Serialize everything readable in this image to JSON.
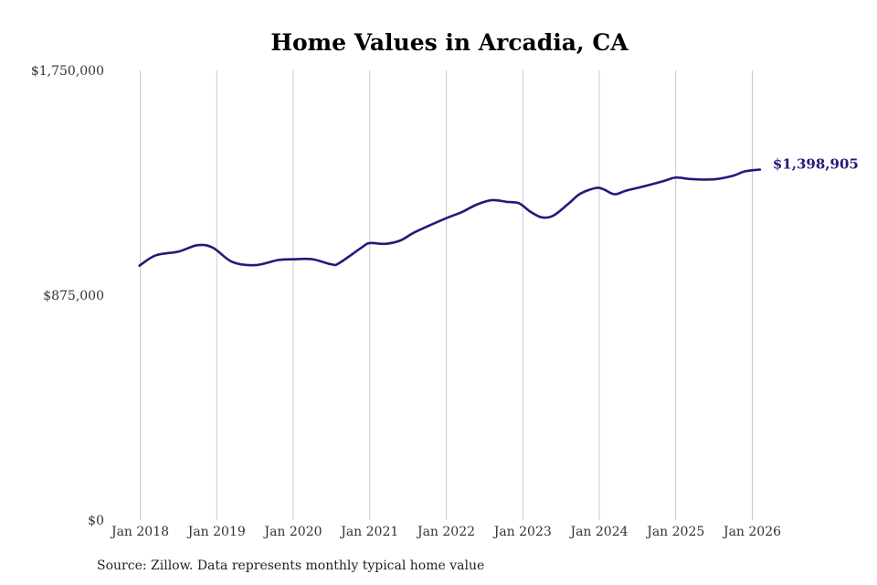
{
  "chart_data": {
    "type": "line",
    "title": "Home Values in Arcadia, CA",
    "xlabel": "",
    "ylabel": "",
    "ylim": [
      0,
      1750000
    ],
    "y_ticks": [
      {
        "value": 0,
        "label": "$0"
      },
      {
        "value": 875000,
        "label": "$875,000"
      },
      {
        "value": 1750000,
        "label": "$1,750,000"
      }
    ],
    "x_ticks": [
      {
        "value": 2018,
        "label": "Jan 2018"
      },
      {
        "value": 2019,
        "label": "Jan 2019"
      },
      {
        "value": 2020,
        "label": "Jan 2020"
      },
      {
        "value": 2021,
        "label": "Jan 2021"
      },
      {
        "value": 2022,
        "label": "Jan 2022"
      },
      {
        "value": 2023,
        "label": "Jan 2023"
      },
      {
        "value": 2024,
        "label": "Jan 2024"
      },
      {
        "value": 2025,
        "label": "Jan 2025"
      },
      {
        "value": 2026,
        "label": "Jan 2026"
      }
    ],
    "xlim": [
      2018,
      2026
    ],
    "grid": {
      "vertical": true,
      "horizontal": false
    },
    "line_color": "#231a7a",
    "end_label": "$1,398,905",
    "series": [
      {
        "points": [
          [
            2017.99,
            990000
          ],
          [
            2018.2,
            1030000
          ],
          [
            2018.5,
            1045000
          ],
          [
            2018.75,
            1070000
          ],
          [
            2018.95,
            1060000
          ],
          [
            2019.2,
            1005000
          ],
          [
            2019.5,
            992000
          ],
          [
            2019.8,
            1012000
          ],
          [
            2020.0,
            1015000
          ],
          [
            2020.25,
            1015000
          ],
          [
            2020.5,
            995000
          ],
          [
            2020.6,
            1000000
          ],
          [
            2020.9,
            1062000
          ],
          [
            2021.0,
            1078000
          ],
          [
            2021.2,
            1075000
          ],
          [
            2021.4,
            1088000
          ],
          [
            2021.6,
            1122000
          ],
          [
            2022.0,
            1175000
          ],
          [
            2022.2,
            1198000
          ],
          [
            2022.4,
            1228000
          ],
          [
            2022.6,
            1245000
          ],
          [
            2022.8,
            1238000
          ],
          [
            2022.95,
            1233000
          ],
          [
            2023.1,
            1200000
          ],
          [
            2023.25,
            1178000
          ],
          [
            2023.4,
            1185000
          ],
          [
            2023.6,
            1232000
          ],
          [
            2023.75,
            1270000
          ],
          [
            2023.95,
            1292000
          ],
          [
            2024.05,
            1288000
          ],
          [
            2024.2,
            1268000
          ],
          [
            2024.35,
            1282000
          ],
          [
            2024.6,
            1300000
          ],
          [
            2024.85,
            1320000
          ],
          [
            2025.0,
            1333000
          ],
          [
            2025.2,
            1327000
          ],
          [
            2025.5,
            1326000
          ],
          [
            2025.75,
            1340000
          ],
          [
            2025.9,
            1357000
          ],
          [
            2026.1,
            1364000
          ]
        ]
      }
    ]
  },
  "footer": {
    "source": "Source: Zillow. Data represents monthly typical home value"
  }
}
